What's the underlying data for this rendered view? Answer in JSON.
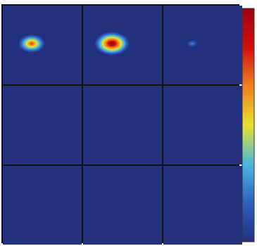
{
  "chart_data": {
    "type": "heatmap",
    "values": [
      [
        0.75,
        1.0,
        0.25
      ],
      [
        0,
        0,
        0
      ],
      [
        0,
        0,
        0
      ]
    ],
    "clim": [
      0,
      1
    ],
    "colors": [
      "#22307e",
      "#2f5fc0",
      "#4ab8e0",
      "#e8e030",
      "#f08020",
      "#d01010",
      "#a00010"
    ],
    "colorbar": true
  }
}
